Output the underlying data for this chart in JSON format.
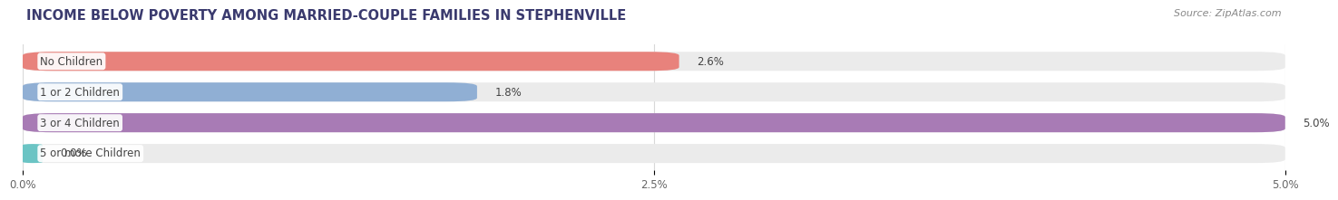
{
  "title": "INCOME BELOW POVERTY AMONG MARRIED-COUPLE FAMILIES IN STEPHENVILLE",
  "source": "Source: ZipAtlas.com",
  "categories": [
    "No Children",
    "1 or 2 Children",
    "3 or 4 Children",
    "5 or more Children"
  ],
  "values": [
    2.6,
    1.8,
    5.0,
    0.0
  ],
  "bar_colors": [
    "#e8827c",
    "#90afd4",
    "#a87bb5",
    "#6bc4c4"
  ],
  "bar_bg_color": "#ebebeb",
  "xlim": [
    0,
    5.0
  ],
  "xticks": [
    0.0,
    2.5,
    5.0
  ],
  "xtick_labels": [
    "0.0%",
    "2.5%",
    "5.0%"
  ],
  "title_fontsize": 10.5,
  "source_fontsize": 8,
  "label_fontsize": 8.5,
  "value_fontsize": 8.5,
  "bar_height": 0.62,
  "background_color": "#ffffff",
  "label_box_color": "#ffffff",
  "label_text_color": "#444444",
  "value_text_color": "#444444",
  "title_color": "#3a3a6e",
  "grid_color": "#d8d8d8"
}
